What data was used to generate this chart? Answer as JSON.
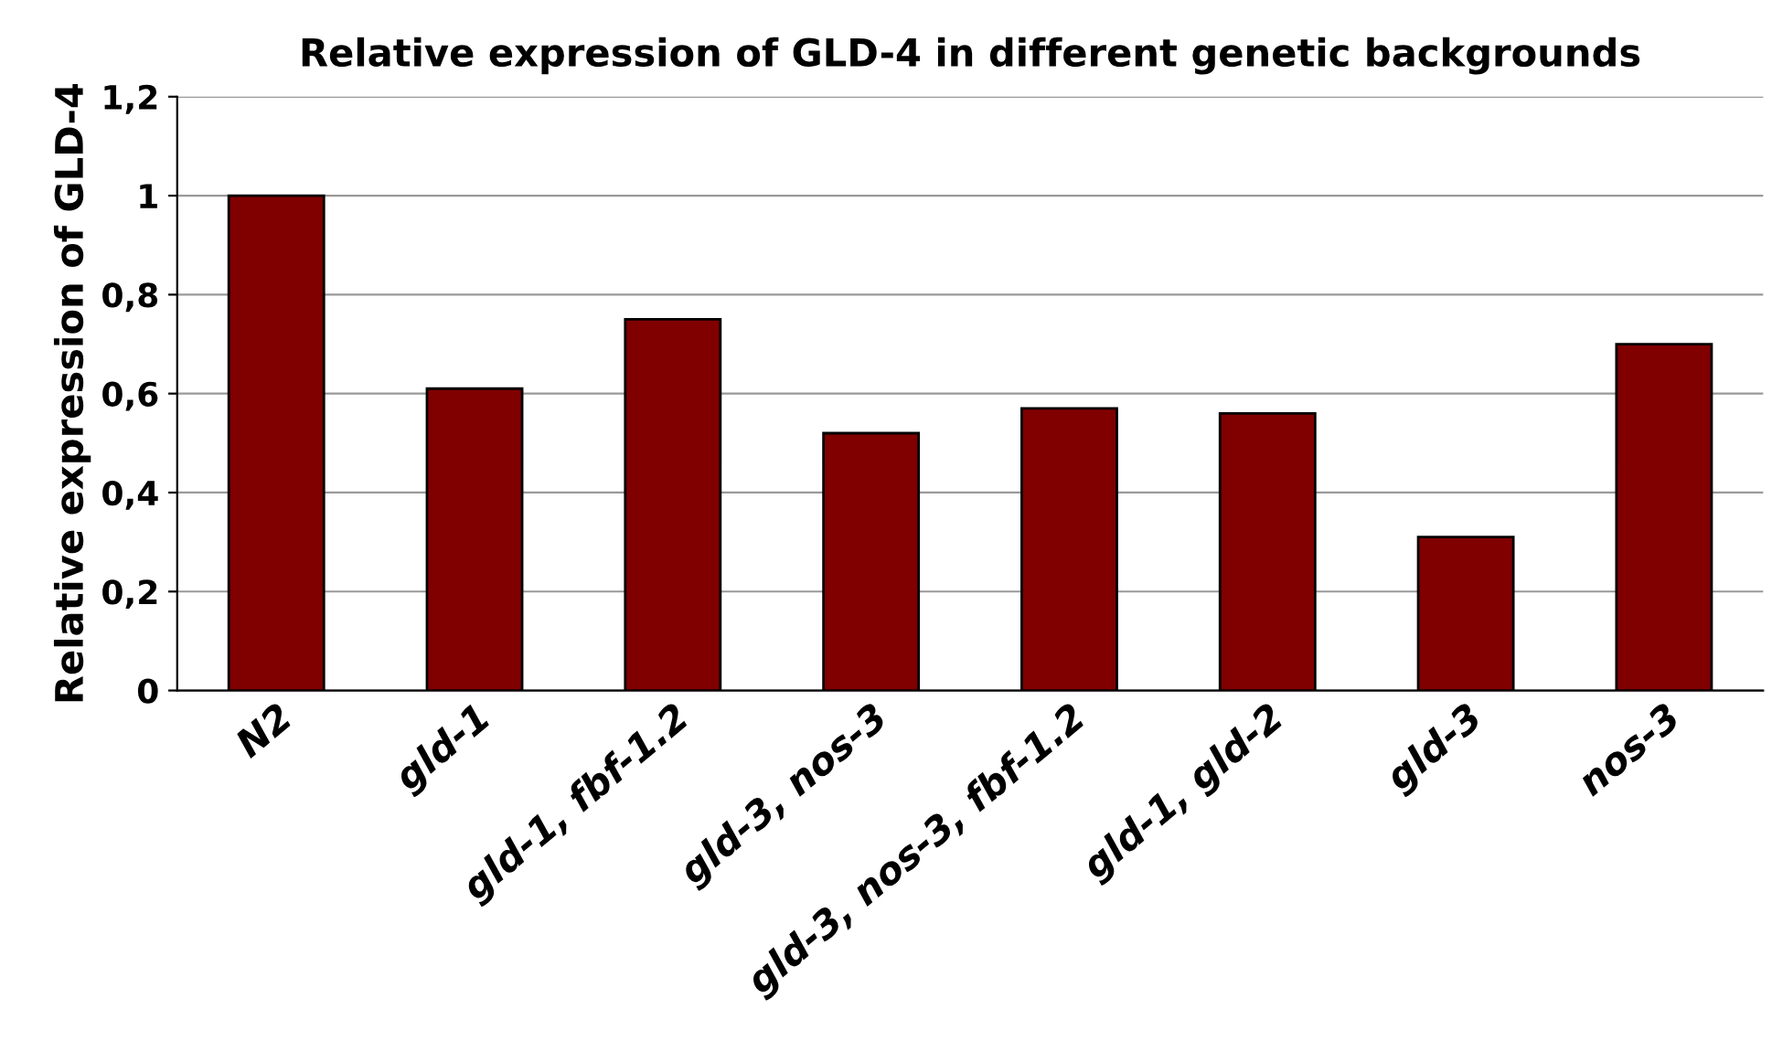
{
  "chart_data": {
    "type": "bar",
    "title": "Relative expression of GLD-4 in different genetic backgrounds",
    "ylabel": "Relative expression of GLD-4",
    "categories": [
      "N2",
      "gld-1",
      "gld-1, fbf-1.2",
      "gld-3, nos-3",
      "gld-3, nos-3, fbf-1.2",
      "gld-1, gld-2",
      "gld-3",
      "nos-3"
    ],
    "values": [
      1.0,
      0.61,
      0.75,
      0.52,
      0.57,
      0.56,
      0.31,
      0.7
    ],
    "color": "#800000",
    "ylim": [
      0,
      1.2
    ],
    "yticks": [
      {
        "value": 0,
        "label": "0"
      },
      {
        "value": 0.2,
        "label": "0,2"
      },
      {
        "value": 0.4,
        "label": "0,4"
      },
      {
        "value": 0.6,
        "label": "0,6"
      },
      {
        "value": 0.8,
        "label": "0,8"
      },
      {
        "value": 1,
        "label": "1"
      },
      {
        "value": 1.2,
        "label": "1,2"
      }
    ],
    "grid": "y",
    "legend": false
  }
}
